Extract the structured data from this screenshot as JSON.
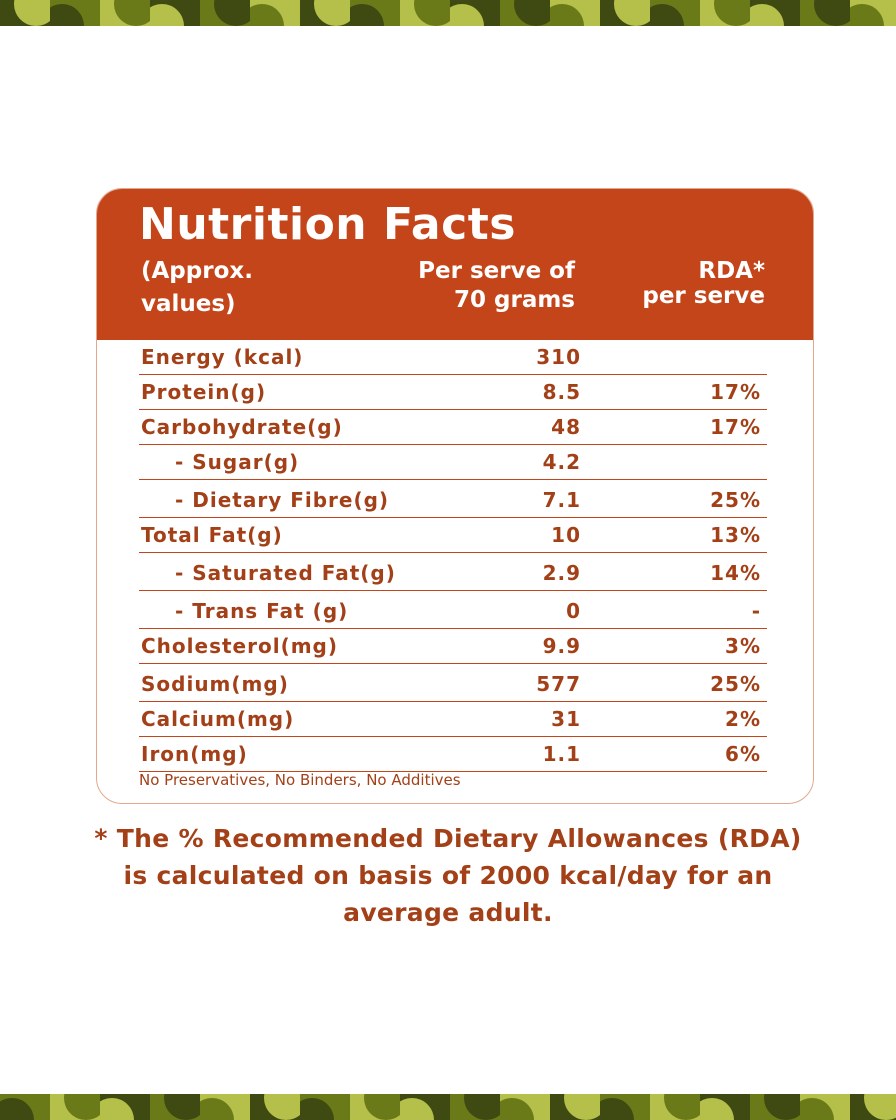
{
  "header": {
    "title": "Nutrition Facts",
    "col1_line1": "(Approx.",
    "col1_line2": "values)",
    "col2_line1": "Per serve of",
    "col2_line2": "70 grams",
    "col3_line1": "RDA*",
    "col3_line2": "per serve"
  },
  "rows": [
    {
      "name": "Energy (kcal)",
      "value": "310",
      "rda": ""
    },
    {
      "name": "Protein(g)",
      "value": "8.5",
      "rda": "17%"
    },
    {
      "name": "Carbohydrate(g)",
      "value": "48",
      "rda": "17%"
    },
    {
      "name": "- Sugar(g)",
      "value": "4.2",
      "rda": ""
    },
    {
      "name": "- Dietary Fibre(g)",
      "value": "7.1",
      "rda": "25%"
    },
    {
      "name": "Total Fat(g)",
      "value": "10",
      "rda": "13%"
    },
    {
      "name": "- Saturated Fat(g)",
      "value": "2.9",
      "rda": "14%"
    },
    {
      "name": "- Trans Fat (g)",
      "value": "0",
      "rda": "-"
    },
    {
      "name": "Cholesterol(mg)",
      "value": "9.9",
      "rda": "3%"
    },
    {
      "name": "Sodium(mg)",
      "value": "577",
      "rda": "25%"
    },
    {
      "name": "Calcium(mg)",
      "value": "31",
      "rda": "2%"
    },
    {
      "name": "Iron(mg)",
      "value": "1.1",
      "rda": "6%"
    }
  ],
  "footnote_small": "No Preservatives, No Binders, No Additives",
  "disclaimer": "* The % Recommended Dietary Allowances (RDA) is calculated on basis of 2000 kcal/day for an average adult.",
  "colors": {
    "accent": "#c5451a",
    "text": "#a34018",
    "pattern_dark": "#3f4a12",
    "pattern_mid": "#6b7a18",
    "pattern_light": "#b5c04a"
  }
}
